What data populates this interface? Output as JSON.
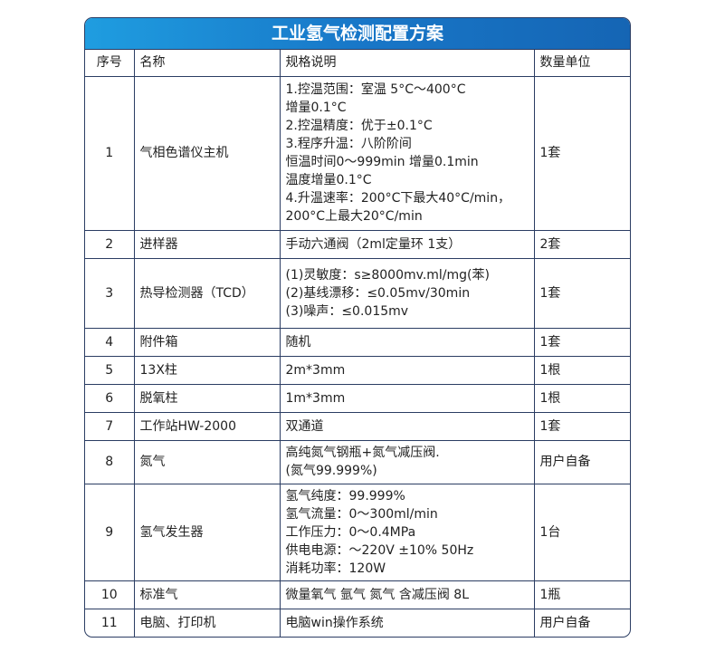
{
  "title": "工业氢气检测配置方案",
  "columns": [
    "序号",
    "名称",
    "规格说明",
    "数量单位"
  ],
  "rows": [
    {
      "no": "1",
      "name": "气相色谱仪主机",
      "spec": [
        "1.控温范围：室温 5°C～400°C",
        "增量0.1°C",
        "2.控温精度：优于±0.1°C",
        "3.程序升温：八阶阶间",
        "恒温时间0～999min 增量0.1min",
        "温度增量0.1°C",
        "4.升温速率：200°C下最大40°C/min，",
        "200°C上最大20°C/min"
      ],
      "qty": "1套"
    },
    {
      "no": "2",
      "name": "进样器",
      "spec": [
        "手动六通阀（2ml定量环 1支）"
      ],
      "qty": "2套"
    },
    {
      "no": "3",
      "name": "热导检测器（TCD）",
      "spec": [
        "(1)灵敏度：s≥8000mv.ml/mg(苯)",
        "(2)基线漂移：≤0.05mv/30min",
        "(3)噪声：≤0.015mv"
      ],
      "qty": "1套"
    },
    {
      "no": "4",
      "name": "附件箱",
      "spec": [
        "随机"
      ],
      "qty": "1套"
    },
    {
      "no": "5",
      "name": "13X柱",
      "spec": [
        "2m*3mm"
      ],
      "qty": "1根"
    },
    {
      "no": "6",
      "name": "脱氧柱",
      "spec": [
        "1m*3mm"
      ],
      "qty": "1根"
    },
    {
      "no": "7",
      "name": "工作站HW-2000",
      "spec": [
        "双通道"
      ],
      "qty": "1套"
    },
    {
      "no": "8",
      "name": "氮气",
      "spec": [
        "高纯氮气钢瓶+氮气减压阀.",
        "(氮气99.999%)"
      ],
      "qty": "用户自备"
    },
    {
      "no": "9",
      "name": "氢气发生器",
      "spec": [
        "氢气纯度：99.999%",
        "氢气流量：0～300ml/min",
        "工作压力：0～0.4MPa",
        "供电电源：～220V ±10% 50Hz",
        "消耗功率：120W"
      ],
      "qty": "1台"
    },
    {
      "no": "10",
      "name": "标准气",
      "spec": [
        "微量氧气 氩气 氮气 含减压阀 8L"
      ],
      "qty": "1瓶"
    },
    {
      "no": "11",
      "name": "电脑、打印机",
      "spec": [
        "电脑win操作系统"
      ],
      "qty": "用户自备"
    }
  ],
  "colors": {
    "title_bg": "#1877c8",
    "border": "#2b3d63"
  }
}
